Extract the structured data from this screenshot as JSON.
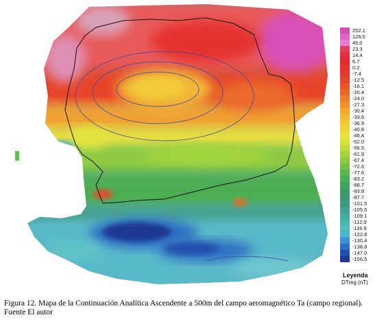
{
  "legend": {
    "title": "Leyenda",
    "unit": "DTreg (nT)",
    "values": [
      "252.1",
      "126.5",
      "45.0",
      "23.3",
      "14.4",
      "6.7",
      "0.2",
      "-7.4",
      "-12.5",
      "-16.1",
      "-20.4",
      "-24.0",
      "-27.3",
      "-30.4",
      "-33.6",
      "-36.9",
      "-40.8",
      "-46.4",
      "-52.0",
      "-56.5",
      "-61.9",
      "-67.4",
      "-72.6",
      "-77.6",
      "-83.2",
      "-88.7",
      "-93.8",
      "-97.7",
      "-101.5",
      "-105.5",
      "-109.1",
      "-112.9",
      "-116.9",
      "-122.8",
      "-130.4",
      "-138.8",
      "-147.0",
      "-156.5"
    ],
    "colors": [
      "#d24fb6",
      "#dc66c2",
      "#e67bcf",
      "#e23f5b",
      "#e3303e",
      "#e42a2d",
      "#e5302c",
      "#e53a2b",
      "#e7472a",
      "#ea552b",
      "#ec672c",
      "#ef7b2e",
      "#f1902f",
      "#f3a532",
      "#f3b834",
      "#f2c838",
      "#efd63b",
      "#ebe23d",
      "#d8e23c",
      "#bfdc3c",
      "#a5d33e",
      "#8cca42",
      "#72c146",
      "#5db84b",
      "#4cad55",
      "#42a35c",
      "#3e9a66",
      "#3f9673",
      "#429980",
      "#46a08e",
      "#49a99d",
      "#4db2ab",
      "#51bcbb",
      "#4fb3cf",
      "#3c8fd0",
      "#2d6fc4",
      "#2350ad",
      "#1f3891"
    ]
  },
  "caption": {
    "line1": "Figura 12. Mapa de la Continuación Analítica Ascendente a 500m del campo aeromagnético Ta (campo regional).",
    "line2": "Fuente El autor"
  }
}
